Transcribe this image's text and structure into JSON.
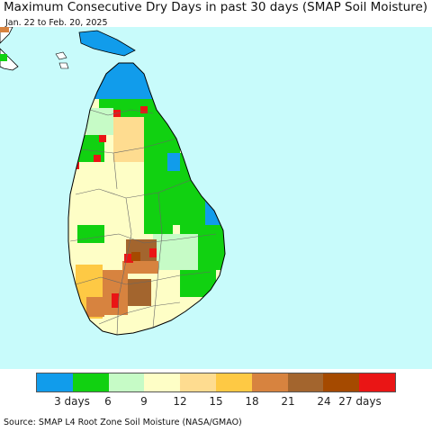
{
  "title": "Maximum Consecutive Dry Days in past 30 days (SMAP Soil Moisture)",
  "date_range": "Jan. 22 to Feb. 20, 2025",
  "source": "Source: SMAP L4 Root Zone Soil Moisture (NASA/GMAO)",
  "colors": {
    "sea": "#c8fbfb",
    "land_outside": "#ffffff",
    "district_border": "#666666",
    "coast": "#000000"
  },
  "legend": {
    "bins": [
      {
        "color": "#119ceb"
      },
      {
        "color": "#11d111"
      },
      {
        "color": "#c6fbc6"
      },
      {
        "color": "#fefec6"
      },
      {
        "color": "#fedc90"
      },
      {
        "color": "#fec944"
      },
      {
        "color": "#d7833f"
      },
      {
        "color": "#a3652e"
      },
      {
        "color": "#a54a00"
      },
      {
        "color": "#ea1515"
      }
    ],
    "tick_labels": [
      "3 days",
      "6",
      "9",
      "12",
      "15",
      "18",
      "21",
      "24",
      "27 days"
    ]
  },
  "chart_data": {
    "type": "heatmap",
    "title": "Maximum Consecutive Dry Days in past 30 days (SMAP Soil Moisture)",
    "subtitle": "Jan. 22 to Feb. 20, 2025",
    "legend_units": "days",
    "legend_range": [
      0,
      30
    ],
    "legend_step": 3,
    "legend_placement": "bottom",
    "regions_dominant_category": {
      "north_jaffna": "0-3",
      "east_coast": "3-6",
      "north_central": "12-15",
      "central_west": "9-12",
      "central_highlands": "21-24",
      "southwest": "15-21",
      "south": "9-12"
    }
  }
}
